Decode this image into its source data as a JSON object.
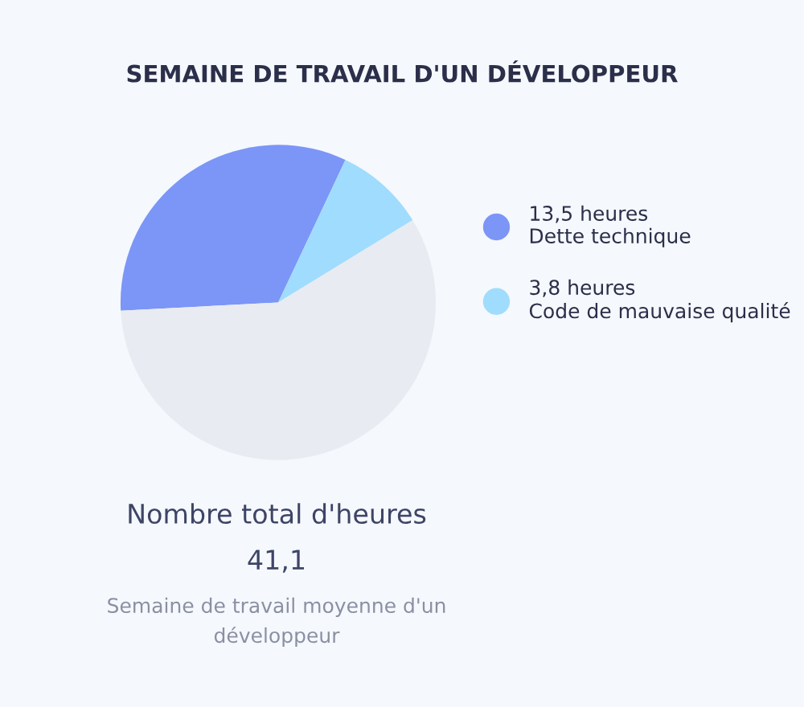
{
  "chart_data": {
    "type": "pie",
    "title": "SEMAINE DE TRAVAIL D'UN DÉVELOPPEUR",
    "categories": [
      "Dette technique",
      "Code de mauvaise qualité",
      null
    ],
    "values": [
      13.5,
      3.8,
      23.8
    ],
    "value_labels": [
      "13,5 heures",
      "3,8 heures",
      null
    ],
    "colors": [
      "#7b96f7",
      "#a0dcfd",
      "#e8ebf1"
    ],
    "legend": "right",
    "annotations": [
      "Nombre total d'heures",
      "41,1",
      "Semaine de travail moyenne d'un développeur"
    ]
  }
}
